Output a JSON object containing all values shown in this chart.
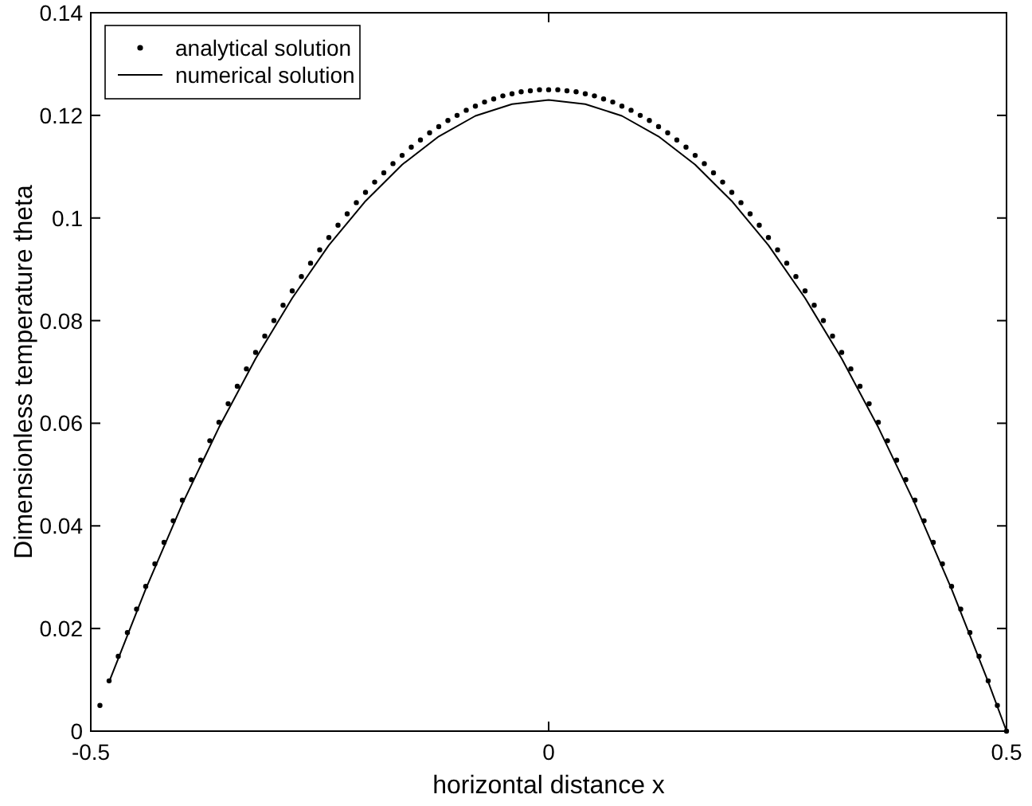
{
  "chart_data": {
    "type": "line",
    "xlabel": "horizontal distance x",
    "ylabel": "Dimensionless temperature theta",
    "xlim": [
      -0.5,
      0.5
    ],
    "xticks": [
      -0.5,
      0,
      0.5
    ],
    "ylim": [
      0,
      0.14
    ],
    "yticks": [
      0,
      0.02,
      0.04,
      0.06,
      0.08,
      0.1,
      0.12,
      0.14
    ],
    "grid": false,
    "legend": "top left",
    "series": [
      {
        "name": "analytical solution",
        "type": "scatter",
        "marker": "circle",
        "color": "#000000",
        "x": [
          -0.49,
          -0.48,
          -0.47,
          -0.46,
          -0.45,
          -0.44,
          -0.43,
          -0.42,
          -0.41,
          -0.4,
          -0.39,
          -0.38,
          -0.37,
          -0.36,
          -0.35,
          -0.34,
          -0.33,
          -0.32,
          -0.31,
          -0.3,
          -0.29,
          -0.28,
          -0.27,
          -0.26,
          -0.25,
          -0.24,
          -0.23,
          -0.22,
          -0.21,
          -0.2,
          -0.19,
          -0.18,
          -0.17,
          -0.16,
          -0.15,
          -0.14,
          -0.13,
          -0.12,
          -0.11,
          -0.1,
          -0.09,
          -0.08,
          -0.07,
          -0.06,
          -0.05,
          -0.04,
          -0.03,
          -0.02,
          -0.01,
          0,
          0.01,
          0.02,
          0.03,
          0.04,
          0.05,
          0.06,
          0.07,
          0.08,
          0.09,
          0.1,
          0.11,
          0.12,
          0.13,
          0.14,
          0.15,
          0.16,
          0.17,
          0.18,
          0.19,
          0.2,
          0.21,
          0.22,
          0.23,
          0.24,
          0.25,
          0.26,
          0.27,
          0.28,
          0.29,
          0.3,
          0.31,
          0.32,
          0.33,
          0.34,
          0.35,
          0.36,
          0.37,
          0.38,
          0.39,
          0.4,
          0.41,
          0.42,
          0.43,
          0.44,
          0.45,
          0.46,
          0.47,
          0.48,
          0.49,
          0.5
        ],
        "values": [
          0.005,
          0.0098,
          0.0146,
          0.0192,
          0.0238,
          0.0282,
          0.0326,
          0.0368,
          0.041,
          0.045,
          0.049,
          0.0528,
          0.0566,
          0.0602,
          0.0638,
          0.0672,
          0.0706,
          0.0738,
          0.077,
          0.08,
          0.083,
          0.0858,
          0.0886,
          0.0912,
          0.0938,
          0.0962,
          0.0986,
          0.1008,
          0.103,
          0.105,
          0.107,
          0.1088,
          0.1106,
          0.1122,
          0.1138,
          0.1152,
          0.1166,
          0.1178,
          0.119,
          0.12,
          0.121,
          0.1218,
          0.1226,
          0.1232,
          0.1238,
          0.1242,
          0.1246,
          0.1248,
          0.125,
          0.125,
          0.125,
          0.1248,
          0.1246,
          0.1242,
          0.1238,
          0.1232,
          0.1226,
          0.1218,
          0.121,
          0.12,
          0.119,
          0.1178,
          0.1166,
          0.1152,
          0.1138,
          0.1122,
          0.1106,
          0.1088,
          0.107,
          0.105,
          0.103,
          0.1008,
          0.0986,
          0.0962,
          0.0938,
          0.0912,
          0.0886,
          0.0858,
          0.083,
          0.08,
          0.077,
          0.0738,
          0.0706,
          0.0672,
          0.0638,
          0.0602,
          0.0566,
          0.0528,
          0.049,
          0.045,
          0.041,
          0.0368,
          0.0326,
          0.0282,
          0.0238,
          0.0192,
          0.0146,
          0.0098,
          0.005,
          0
        ]
      },
      {
        "name": "numerical solution",
        "type": "line",
        "marker": "none",
        "line_style": "solid",
        "color": "#000000",
        "x": [
          -0.48,
          -0.44,
          -0.4,
          -0.36,
          -0.32,
          -0.28,
          -0.24,
          -0.2,
          -0.16,
          -0.12,
          -0.08,
          -0.04,
          0,
          0.04,
          0.08,
          0.12,
          0.16,
          0.2,
          0.24,
          0.28,
          0.32,
          0.36,
          0.4,
          0.44,
          0.48,
          0.5
        ],
        "values": [
          0.0096,
          0.0277,
          0.0443,
          0.0592,
          0.0726,
          0.0844,
          0.0947,
          0.1033,
          0.1104,
          0.1159,
          0.1199,
          0.1222,
          0.123,
          0.1222,
          0.1199,
          0.1159,
          0.1104,
          0.1033,
          0.0947,
          0.0844,
          0.0726,
          0.0592,
          0.0443,
          0.0277,
          0.0096,
          0
        ]
      }
    ]
  }
}
